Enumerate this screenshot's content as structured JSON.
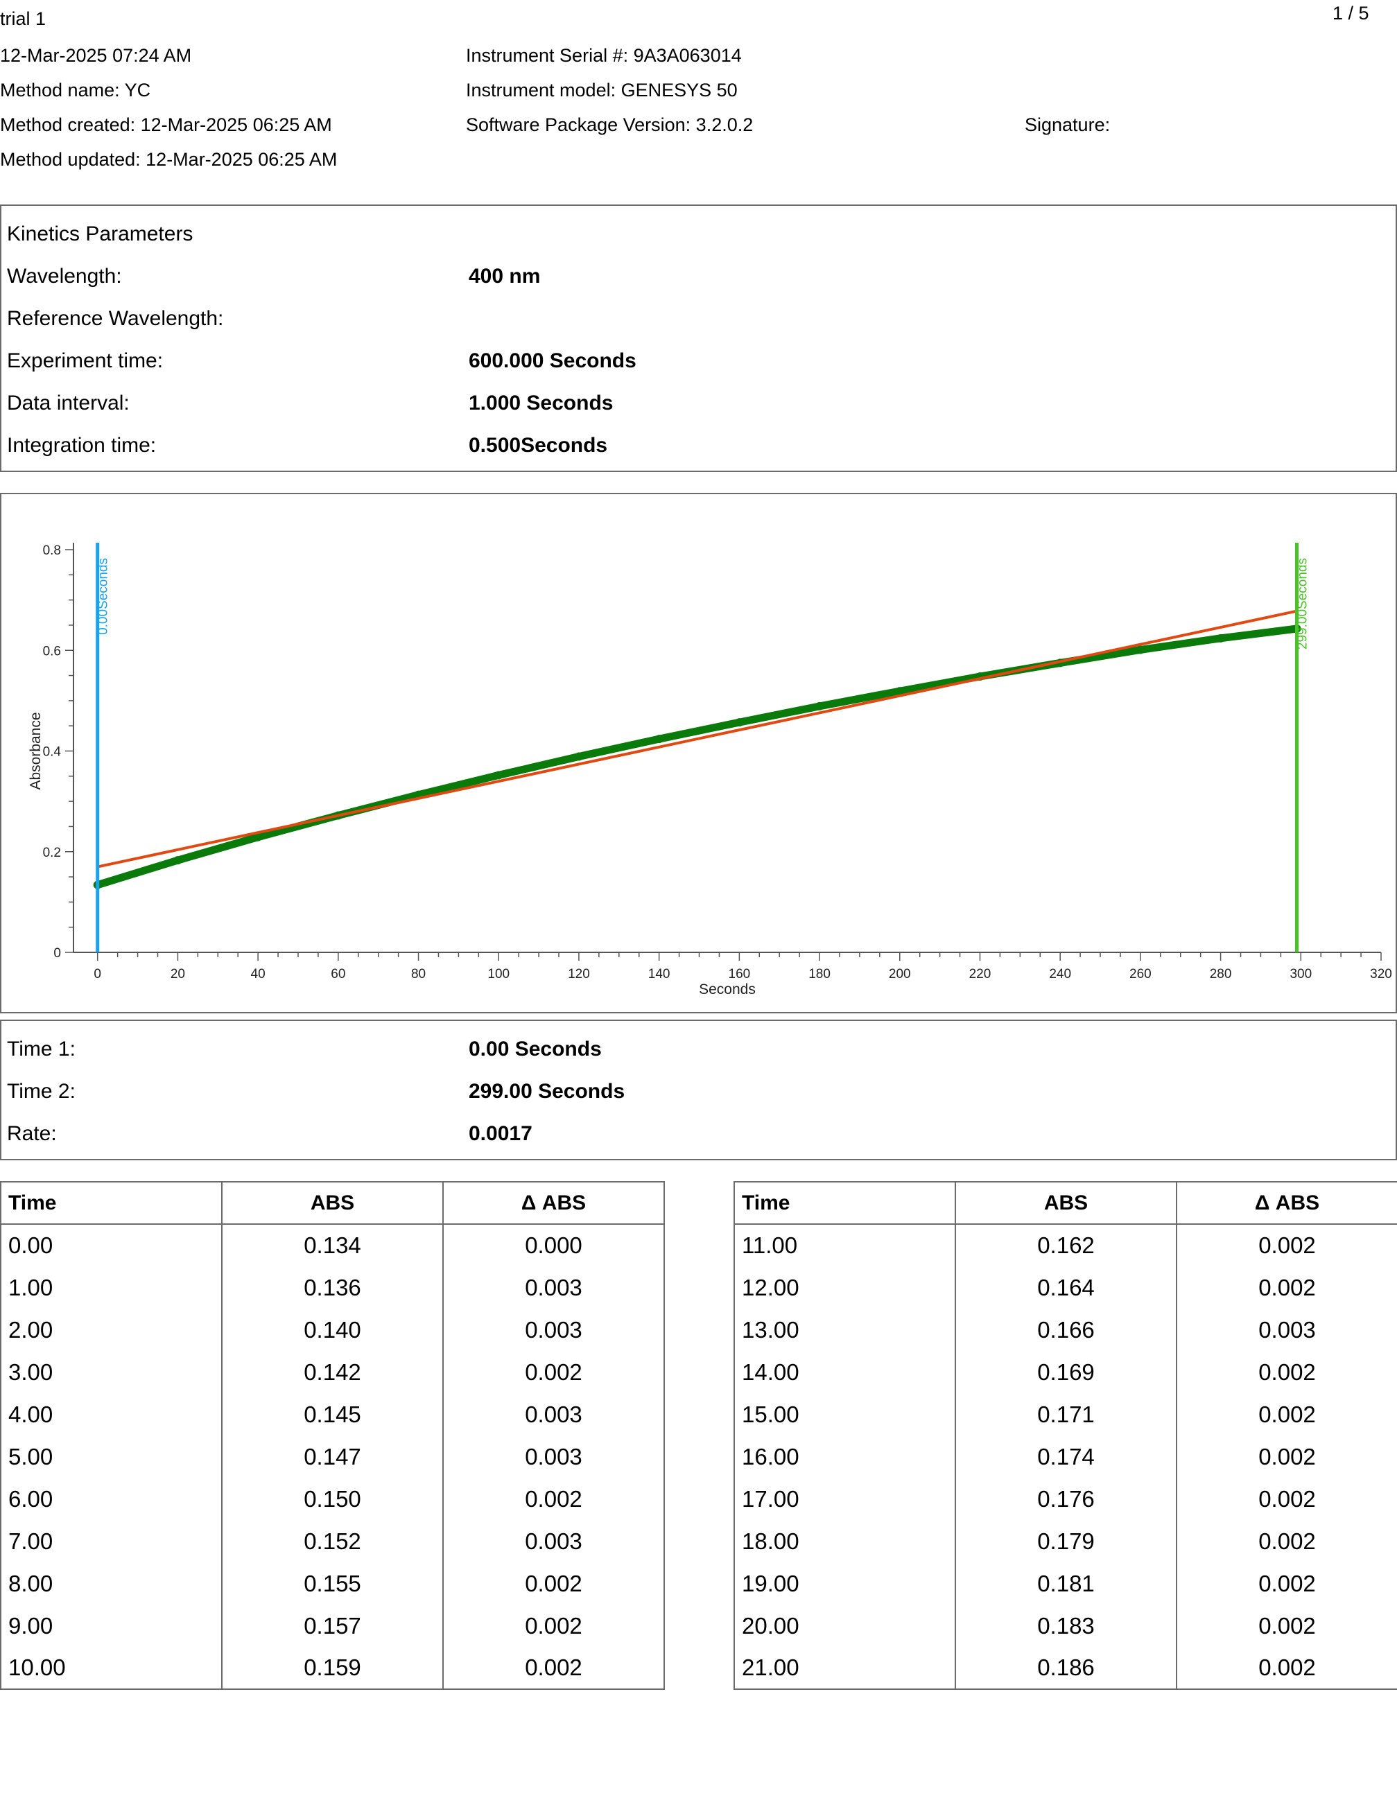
{
  "report": {
    "title": "trial 1",
    "page": "1 / 5",
    "datetime": "12-Mar-2025 07:24 AM",
    "method_name": "Method name: YC",
    "method_created": "Method created: 12-Mar-2025 06:25 AM",
    "method_updated": "Method updated: 12-Mar-2025 06:25 AM",
    "serial": "Instrument Serial #: 9A3A063014",
    "model": "Instrument model: GENESYS 50",
    "software": "Software Package Version: 3.2.0.2",
    "signature": "Signature:"
  },
  "kinetics": {
    "heading": "Kinetics Parameters",
    "rows": [
      {
        "label": "Wavelength:",
        "value": "400 nm"
      },
      {
        "label": "Reference Wavelength:",
        "value": ""
      },
      {
        "label": "Experiment time:",
        "value": "600.000 Seconds"
      },
      {
        "label": "Data interval:",
        "value": "1.000 Seconds"
      },
      {
        "label": "Integration time:",
        "value": "0.500Seconds"
      }
    ]
  },
  "results": {
    "rows": [
      {
        "label": "Time 1:",
        "value": "0.00 Seconds"
      },
      {
        "label": "Time 2:",
        "value": "299.00 Seconds"
      },
      {
        "label": "Rate:",
        "value": "0.0017"
      }
    ]
  },
  "chart_data": {
    "type": "scatter",
    "title": "",
    "xlabel": "Seconds",
    "ylabel": "Absorbance",
    "xlim": [
      -6,
      320
    ],
    "ylim": [
      0,
      0.8
    ],
    "x_ticks": [
      0,
      20,
      40,
      60,
      80,
      100,
      120,
      140,
      160,
      180,
      200,
      220,
      240,
      260,
      280,
      300,
      320
    ],
    "y_ticks": [
      0,
      0.2,
      0.4,
      0.6,
      0.8
    ],
    "y_tick_labels": [
      "0",
      "0.2",
      "0.4",
      "0.6",
      "0.8"
    ],
    "series": [
      {
        "kind": "measured",
        "color": "#0a7a0a",
        "x": [
          0,
          20,
          40,
          60,
          80,
          100,
          120,
          140,
          160,
          180,
          200,
          220,
          240,
          260,
          280,
          299
        ],
        "y": [
          0.134,
          0.183,
          0.229,
          0.272,
          0.313,
          0.352,
          0.389,
          0.424,
          0.457,
          0.489,
          0.519,
          0.548,
          0.575,
          0.601,
          0.624,
          0.643
        ]
      },
      {
        "kind": "fit",
        "color": "#e04a12",
        "x": [
          0,
          299
        ],
        "y": [
          0.17,
          0.678
        ]
      }
    ],
    "markers": [
      {
        "x": 0,
        "label": "0.00Seconds",
        "color": "#1aa3e8"
      },
      {
        "x": 299,
        "label": "299.00Seconds",
        "color": "#4cc22a"
      }
    ],
    "grid": false
  },
  "tables": {
    "headers": [
      "Time",
      "ABS",
      "Δ ABS"
    ],
    "left": [
      [
        "0.00",
        "0.134",
        "0.000"
      ],
      [
        "1.00",
        "0.136",
        "0.003"
      ],
      [
        "2.00",
        "0.140",
        "0.003"
      ],
      [
        "3.00",
        "0.142",
        "0.002"
      ],
      [
        "4.00",
        "0.145",
        "0.003"
      ],
      [
        "5.00",
        "0.147",
        "0.003"
      ],
      [
        "6.00",
        "0.150",
        "0.002"
      ],
      [
        "7.00",
        "0.152",
        "0.003"
      ],
      [
        "8.00",
        "0.155",
        "0.002"
      ],
      [
        "9.00",
        "0.157",
        "0.002"
      ],
      [
        "10.00",
        "0.159",
        "0.002"
      ]
    ],
    "right": [
      [
        "11.00",
        "0.162",
        "0.002"
      ],
      [
        "12.00",
        "0.164",
        "0.002"
      ],
      [
        "13.00",
        "0.166",
        "0.003"
      ],
      [
        "14.00",
        "0.169",
        "0.002"
      ],
      [
        "15.00",
        "0.171",
        "0.002"
      ],
      [
        "16.00",
        "0.174",
        "0.002"
      ],
      [
        "17.00",
        "0.176",
        "0.002"
      ],
      [
        "18.00",
        "0.179",
        "0.002"
      ],
      [
        "19.00",
        "0.181",
        "0.002"
      ],
      [
        "20.00",
        "0.183",
        "0.002"
      ],
      [
        "21.00",
        "0.186",
        "0.002"
      ]
    ]
  }
}
